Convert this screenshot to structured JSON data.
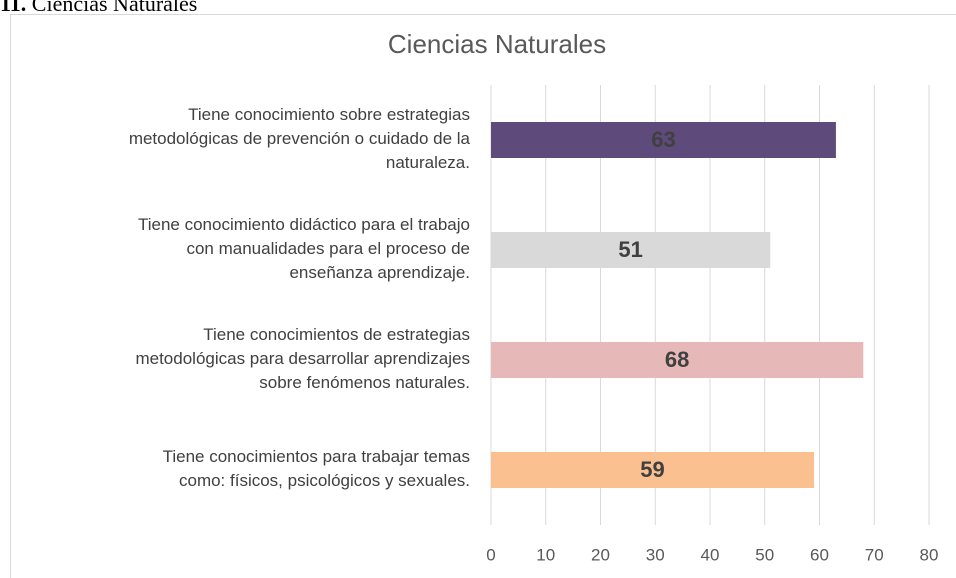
{
  "caption": {
    "number": "11.",
    "text": "Ciencias Naturales"
  },
  "chart_data": {
    "type": "bar",
    "orientation": "horizontal",
    "title": "Ciencias Naturales",
    "categories": [
      [
        "Tiene conocimiento sobre estrategias",
        "metodológicas de prevención o cuidado de la",
        "naturaleza."
      ],
      [
        "Tiene conocimiento didáctico para el trabajo",
        "con manualidades para el proceso de",
        "enseñanza aprendizaje."
      ],
      [
        "Tiene conocimientos de estrategias",
        "metodológicas para desarrollar aprendizajes",
        "sobre fenómenos naturales."
      ],
      [
        "Tiene conocimientos para trabajar temas",
        "como: físicos, psicológicos y sexuales."
      ]
    ],
    "values": [
      63,
      51,
      68,
      59
    ],
    "colors": [
      "#5f4b7b",
      "#d9d9d9",
      "#e6b8b7",
      "#fac090"
    ],
    "xlim": [
      0,
      80
    ],
    "xticks": [
      0,
      10,
      20,
      30,
      40,
      50,
      60,
      70,
      80
    ],
    "grid": true
  }
}
